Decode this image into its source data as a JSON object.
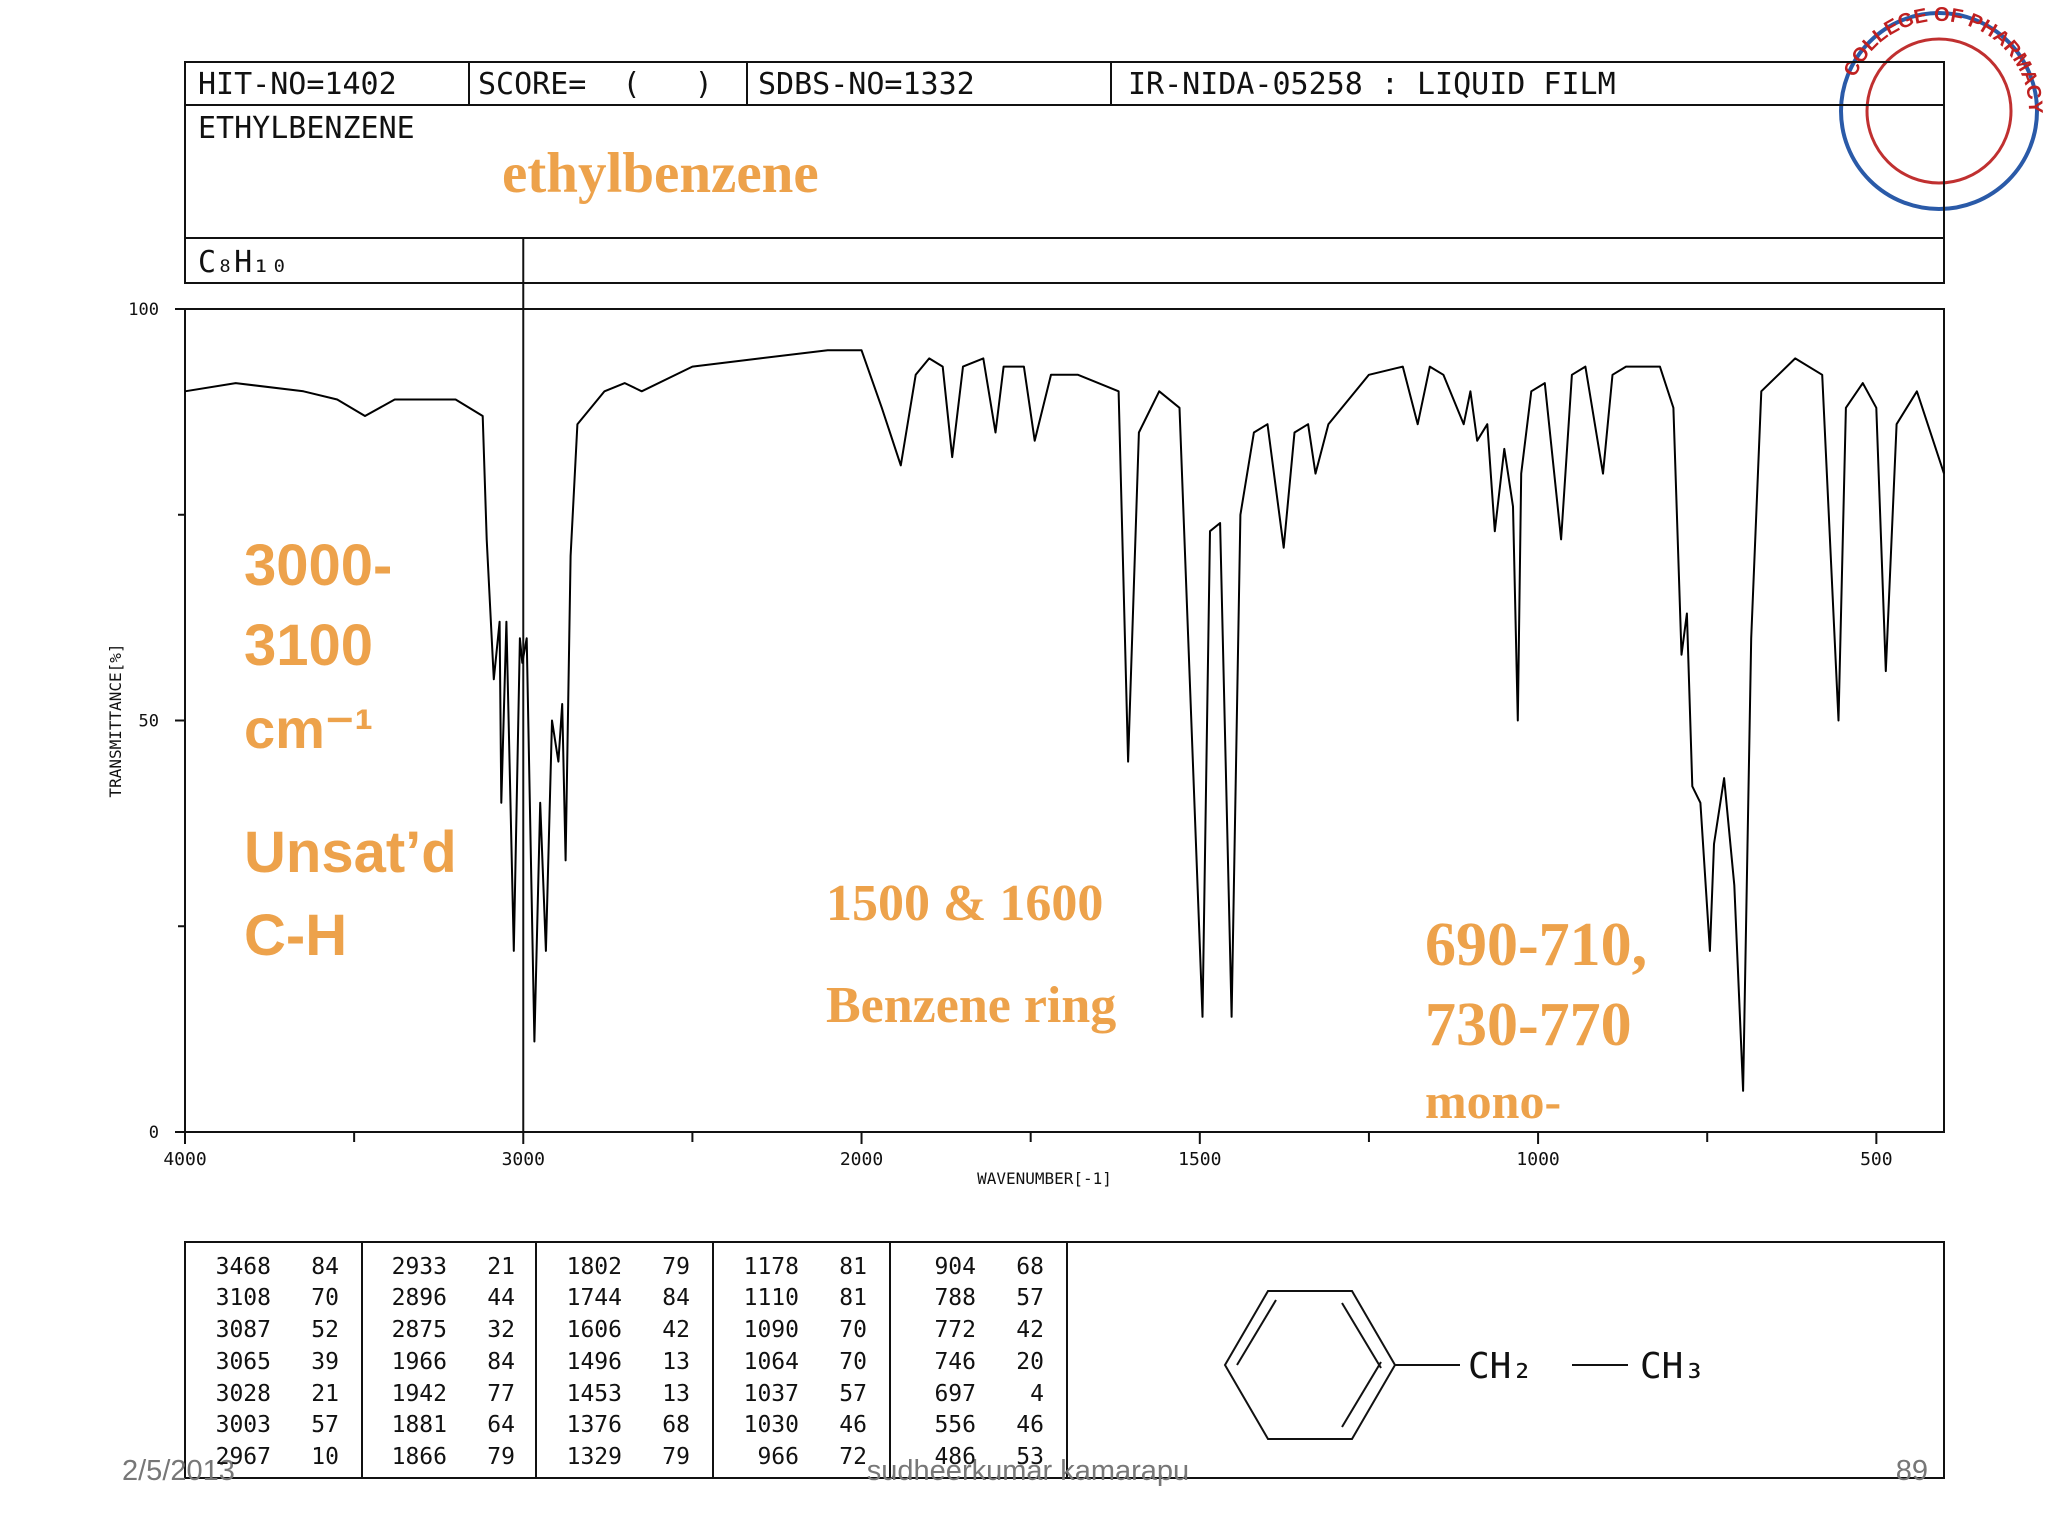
{
  "header": {
    "hit_no": "HIT-NO=1402",
    "score": "SCORE=  (   )",
    "sdbs_no": "SDBS-NO=1332",
    "method": "IR-NIDA-05258 : LIQUID FILM",
    "compound": "ETHYLBENZENE",
    "formula": "C₈H₁₀"
  },
  "chart_data": {
    "type": "line",
    "color": "#000000",
    "x_label": "WAVENUMBER[-1]",
    "y_label": "TRANSMITTANCE[%]",
    "xlim": [
      4000,
      400
    ],
    "x_scale_break": 2000,
    "ylim": [
      0,
      100
    ],
    "xticks": [
      4000,
      3000,
      2000,
      1500,
      1000,
      500
    ],
    "xminor_ticks": [
      3500,
      2500,
      1750,
      1250,
      750
    ],
    "yticks": [
      0,
      50,
      100
    ],
    "yminor_ticks": [
      25,
      75
    ],
    "x": [
      4000,
      3850,
      3650,
      3550,
      3468,
      3380,
      3200,
      3120,
      3108,
      3087,
      3070,
      3065,
      3050,
      3028,
      3010,
      3003,
      2990,
      2967,
      2950,
      2933,
      2915,
      2896,
      2885,
      2875,
      2860,
      2840,
      2760,
      2700,
      2650,
      2500,
      2300,
      2100,
      2000,
      1970,
      1942,
      1920,
      1900,
      1880,
      1866,
      1850,
      1820,
      1802,
      1790,
      1760,
      1744,
      1720,
      1680,
      1620,
      1606,
      1590,
      1560,
      1530,
      1496,
      1485,
      1470,
      1453,
      1440,
      1420,
      1400,
      1376,
      1360,
      1340,
      1329,
      1310,
      1250,
      1200,
      1178,
      1160,
      1140,
      1110,
      1100,
      1090,
      1075,
      1064,
      1050,
      1037,
      1030,
      1025,
      1010,
      990,
      966,
      950,
      930,
      904,
      890,
      870,
      820,
      800,
      788,
      780,
      772,
      760,
      746,
      740,
      725,
      710,
      697,
      685,
      670,
      620,
      580,
      556,
      545,
      520,
      500,
      486,
      470,
      440,
      400
    ],
    "values": [
      90,
      91,
      90,
      89,
      87,
      89,
      89,
      87,
      72,
      55,
      62,
      40,
      62,
      22,
      60,
      57,
      60,
      11,
      40,
      22,
      50,
      45,
      52,
      33,
      70,
      86,
      90,
      91,
      90,
      93,
      94,
      95,
      95,
      88,
      81,
      92,
      94,
      93,
      82,
      93,
      94,
      85,
      93,
      93,
      84,
      92,
      92,
      90,
      45,
      85,
      90,
      88,
      14,
      73,
      74,
      14,
      75,
      85,
      86,
      71,
      85,
      86,
      80,
      86,
      92,
      93,
      86,
      93,
      92,
      86,
      90,
      84,
      86,
      73,
      83,
      76,
      50,
      80,
      90,
      91,
      72,
      92,
      93,
      80,
      92,
      93,
      93,
      88,
      58,
      63,
      42,
      40,
      22,
      35,
      43,
      30,
      5,
      60,
      90,
      94,
      92,
      50,
      88,
      91,
      88,
      56,
      86,
      90,
      80
    ],
    "annotations": [
      "ethylbenzene",
      "3000-",
      "3100",
      "cm⁻¹",
      "Unsat’d",
      "C-H",
      "1500 & 1600",
      "Benzene ring",
      "690-710,",
      "730-770",
      "mono-"
    ]
  },
  "peak_table": [
    [
      [
        3468,
        84
      ],
      [
        3108,
        70
      ],
      [
        3087,
        52
      ],
      [
        3065,
        39
      ],
      [
        3028,
        21
      ],
      [
        3003,
        57
      ],
      [
        2967,
        10
      ]
    ],
    [
      [
        2933,
        21
      ],
      [
        2896,
        44
      ],
      [
        2875,
        32
      ],
      [
        1966,
        84
      ],
      [
        1942,
        77
      ],
      [
        1881,
        64
      ],
      [
        1866,
        79
      ]
    ],
    [
      [
        1802,
        79
      ],
      [
        1744,
        84
      ],
      [
        1606,
        42
      ],
      [
        1496,
        13
      ],
      [
        1453,
        13
      ],
      [
        1376,
        68
      ],
      [
        1329,
        79
      ]
    ],
    [
      [
        1178,
        81
      ],
      [
        1110,
        81
      ],
      [
        1090,
        70
      ],
      [
        1064,
        70
      ],
      [
        1037,
        57
      ],
      [
        1030,
        46
      ],
      [
        966,
        72
      ]
    ],
    [
      [
        904,
        68
      ],
      [
        788,
        57
      ],
      [
        772,
        42
      ],
      [
        746,
        20
      ],
      [
        697,
        4
      ],
      [
        556,
        46
      ],
      [
        486,
        53
      ]
    ]
  ],
  "structure": {
    "group1": "CH₂",
    "group2": "CH₃"
  },
  "footer": {
    "date": "2/5/2013",
    "author": "sudheerkumar kamarapu",
    "page": "89"
  },
  "logo": {
    "text": "COLLEGE OF PHARMACY"
  }
}
